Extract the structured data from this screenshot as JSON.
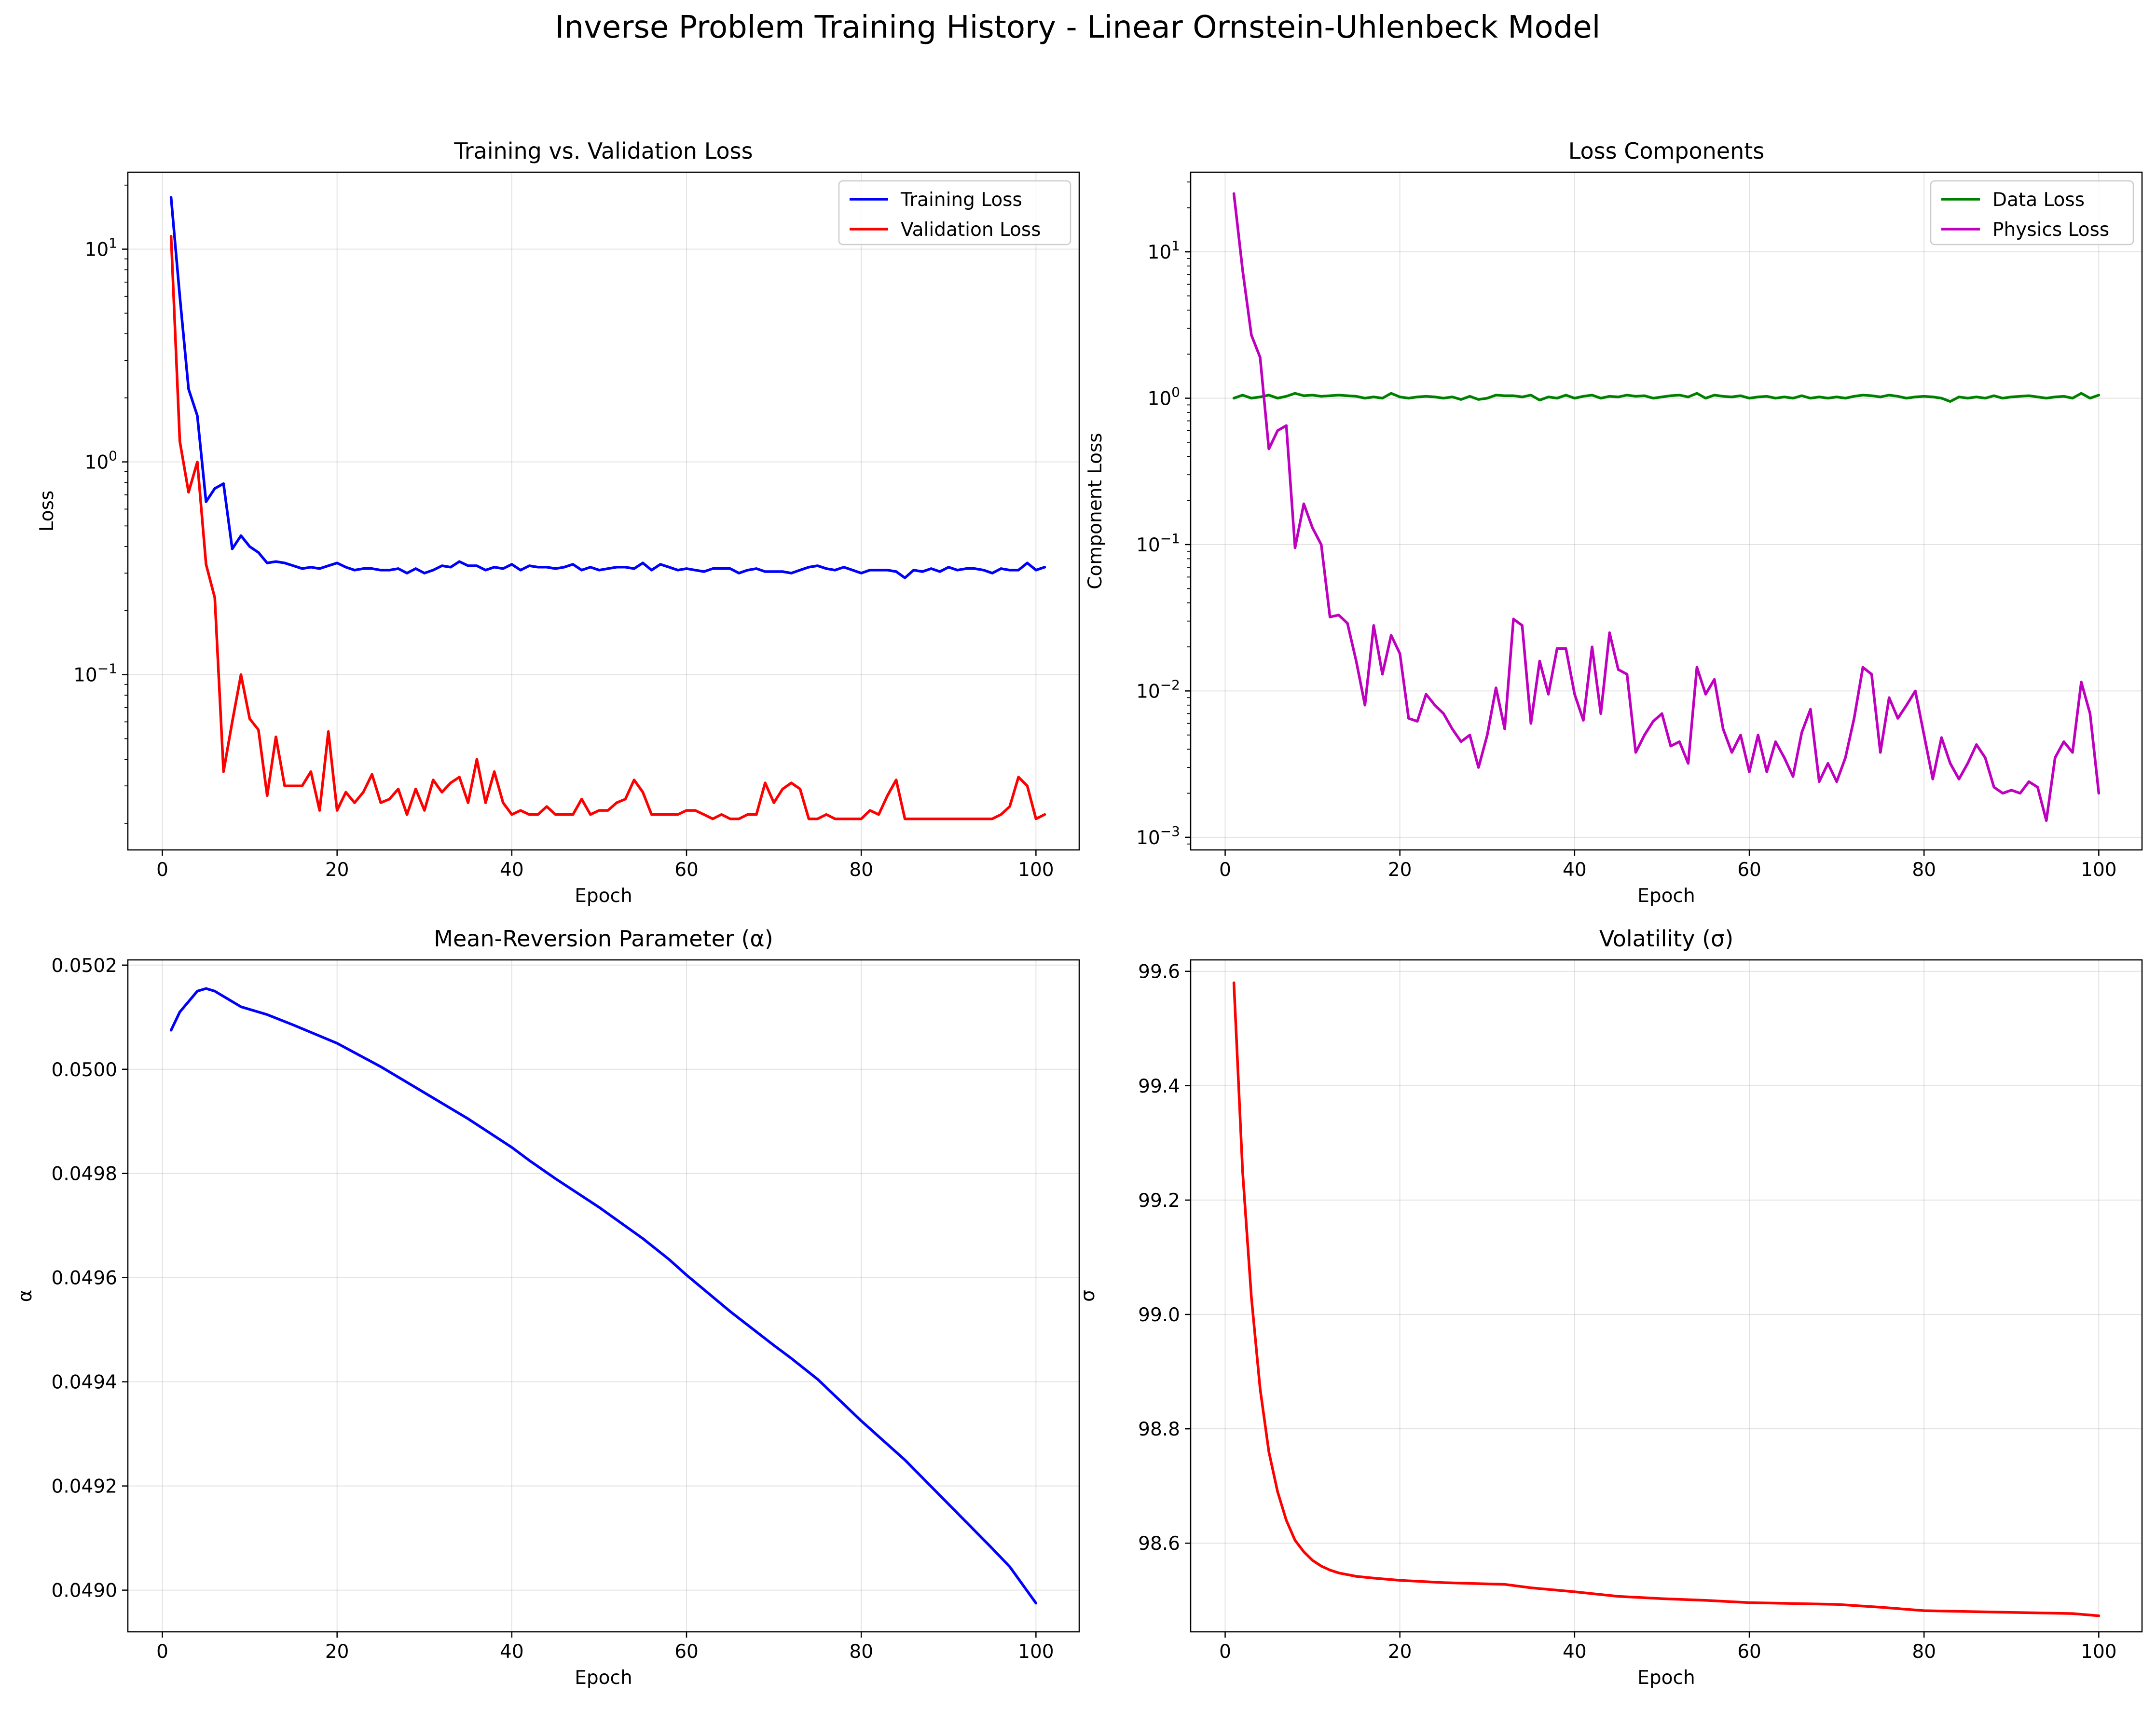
{
  "figure": {
    "suptitle": "Inverse Problem Training History - Linear Ornstein-Uhlenbeck Model"
  },
  "chart_data": [
    {
      "type": "line",
      "title": "Training vs. Validation Loss",
      "xlabel": "Epoch",
      "ylabel": "Loss",
      "yscale": "log",
      "xlim": [
        -3.95,
        104.95
      ],
      "ylim": [
        0.015,
        23
      ],
      "xticks": [
        0,
        20,
        40,
        60,
        80,
        100
      ],
      "yticks": [
        {
          "value": 0.1,
          "base": "10",
          "exp": "−1"
        },
        {
          "value": 1,
          "base": "10",
          "exp": "0"
        },
        {
          "value": 10,
          "base": "10",
          "exp": "1"
        }
      ],
      "grid": true,
      "legend_position": "top-right",
      "x_start": 1,
      "series": [
        {
          "name": "Training Loss",
          "color": "#0000ff",
          "values": [
            17.5,
            6.0,
            2.2,
            1.65,
            0.65,
            0.75,
            0.79,
            0.39,
            0.45,
            0.4,
            0.375,
            0.335,
            0.34,
            0.335,
            0.325,
            0.315,
            0.32,
            0.315,
            0.325,
            0.335,
            0.32,
            0.31,
            0.315,
            0.315,
            0.31,
            0.31,
            0.315,
            0.3,
            0.315,
            0.3,
            0.31,
            0.325,
            0.32,
            0.34,
            0.325,
            0.325,
            0.31,
            0.32,
            0.315,
            0.33,
            0.31,
            0.325,
            0.32,
            0.32,
            0.315,
            0.32,
            0.33,
            0.31,
            0.32,
            0.31,
            0.315,
            0.32,
            0.32,
            0.315,
            0.335,
            0.31,
            0.33,
            0.32,
            0.31,
            0.315,
            0.31,
            0.305,
            0.315,
            0.315,
            0.315,
            0.3,
            0.31,
            0.315,
            0.305,
            0.305,
            0.305,
            0.3,
            0.31,
            0.32,
            0.325,
            0.315,
            0.31,
            0.32,
            0.31,
            0.3,
            0.31,
            0.31,
            0.31,
            0.305,
            0.285,
            0.31,
            0.305,
            0.315,
            0.305,
            0.32,
            0.31,
            0.315,
            0.315,
            0.31,
            0.3,
            0.315,
            0.31,
            0.31,
            0.335,
            0.31,
            0.32
          ]
        },
        {
          "name": "Validation Loss",
          "color": "#ff0000",
          "values": [
            11.5,
            1.25,
            0.72,
            1.0,
            0.33,
            0.23,
            0.035,
            0.06,
            0.1,
            0.062,
            0.055,
            0.027,
            0.051,
            0.03,
            0.03,
            0.03,
            0.035,
            0.023,
            0.054,
            0.023,
            0.028,
            0.025,
            0.028,
            0.034,
            0.025,
            0.026,
            0.029,
            0.022,
            0.029,
            0.023,
            0.032,
            0.028,
            0.031,
            0.033,
            0.025,
            0.04,
            0.025,
            0.035,
            0.025,
            0.022,
            0.023,
            0.022,
            0.022,
            0.024,
            0.022,
            0.022,
            0.022,
            0.026,
            0.022,
            0.023,
            0.023,
            0.025,
            0.026,
            0.032,
            0.028,
            0.022,
            0.022,
            0.022,
            0.022,
            0.023,
            0.023,
            0.022,
            0.021,
            0.022,
            0.021,
            0.021,
            0.022,
            0.022,
            0.031,
            0.025,
            0.029,
            0.031,
            0.029,
            0.021,
            0.021,
            0.022,
            0.021,
            0.021,
            0.021,
            0.021,
            0.023,
            0.022,
            0.027,
            0.032,
            0.021,
            0.021,
            0.021,
            0.021,
            0.021,
            0.021,
            0.021,
            0.021,
            0.021,
            0.021,
            0.021,
            0.022,
            0.024,
            0.033,
            0.03,
            0.021,
            0.022
          ]
        }
      ]
    },
    {
      "type": "line",
      "title": "Loss Components",
      "xlabel": "Epoch",
      "ylabel": "Component Loss",
      "yscale": "log",
      "xlim": [
        -3.95,
        104.95
      ],
      "ylim": [
        0.00082,
        35
      ],
      "xticks": [
        0,
        20,
        40,
        60,
        80,
        100
      ],
      "yticks": [
        {
          "value": 0.001,
          "base": "10",
          "exp": "−3"
        },
        {
          "value": 0.01,
          "base": "10",
          "exp": "−2"
        },
        {
          "value": 0.1,
          "base": "10",
          "exp": "−1"
        },
        {
          "value": 1,
          "base": "10",
          "exp": "0"
        },
        {
          "value": 10,
          "base": "10",
          "exp": "1"
        }
      ],
      "grid": true,
      "legend_position": "top-right",
      "x_start": 1,
      "series": [
        {
          "name": "Data Loss",
          "color": "#008000",
          "values": [
            1.0,
            1.05,
            1.0,
            1.02,
            1.05,
            1.0,
            1.03,
            1.08,
            1.04,
            1.05,
            1.03,
            1.04,
            1.05,
            1.04,
            1.03,
            1.0,
            1.02,
            1.0,
            1.08,
            1.02,
            1.0,
            1.02,
            1.03,
            1.02,
            1.0,
            1.02,
            0.98,
            1.03,
            0.98,
            1.0,
            1.05,
            1.04,
            1.04,
            1.02,
            1.05,
            0.97,
            1.02,
            1.0,
            1.05,
            1.0,
            1.03,
            1.05,
            1.0,
            1.03,
            1.02,
            1.05,
            1.03,
            1.04,
            1.0,
            1.02,
            1.04,
            1.05,
            1.02,
            1.08,
            1.0,
            1.05,
            1.03,
            1.02,
            1.04,
            1.0,
            1.02,
            1.03,
            1.0,
            1.02,
            1.0,
            1.04,
            1.0,
            1.02,
            1.0,
            1.02,
            1.0,
            1.03,
            1.05,
            1.04,
            1.02,
            1.05,
            1.03,
            1.0,
            1.02,
            1.03,
            1.02,
            1.0,
            0.95,
            1.02,
            1.0,
            1.02,
            1.0,
            1.04,
            1.0,
            1.02,
            1.03,
            1.04,
            1.02,
            1.0,
            1.02,
            1.03,
            1.0,
            1.08,
            1.0,
            1.05
          ]
        },
        {
          "name": "Physics Loss",
          "color": "#bf00bf",
          "values": [
            25,
            7.5,
            2.7,
            1.9,
            0.45,
            0.6,
            0.65,
            0.095,
            0.19,
            0.13,
            0.1,
            0.032,
            0.033,
            0.029,
            0.016,
            0.008,
            0.028,
            0.013,
            0.024,
            0.018,
            0.0065,
            0.0062,
            0.0095,
            0.008,
            0.007,
            0.0055,
            0.0045,
            0.005,
            0.003,
            0.005,
            0.0105,
            0.0055,
            0.031,
            0.028,
            0.006,
            0.016,
            0.0095,
            0.0195,
            0.0195,
            0.0095,
            0.0063,
            0.02,
            0.007,
            0.025,
            0.014,
            0.013,
            0.0038,
            0.005,
            0.0062,
            0.007,
            0.0042,
            0.0045,
            0.0032,
            0.0145,
            0.0095,
            0.012,
            0.0055,
            0.0038,
            0.005,
            0.0028,
            0.005,
            0.0028,
            0.0045,
            0.0035,
            0.0026,
            0.0052,
            0.0075,
            0.0024,
            0.0032,
            0.0024,
            0.0035,
            0.0065,
            0.0145,
            0.013,
            0.0038,
            0.009,
            0.0065,
            0.008,
            0.01,
            0.005,
            0.0025,
            0.0048,
            0.0032,
            0.0025,
            0.0032,
            0.0043,
            0.0035,
            0.0022,
            0.002,
            0.0021,
            0.002,
            0.0024,
            0.0022,
            0.0013,
            0.0035,
            0.0045,
            0.0038,
            0.0115,
            0.007,
            0.002
          ]
        }
      ]
    },
    {
      "type": "line",
      "title": "Mean-Reversion Parameter (α)",
      "xlabel": "Epoch",
      "ylabel": "α",
      "yscale": "linear",
      "xlim": [
        -3.95,
        104.95
      ],
      "ylim": [
        0.04892,
        0.05021
      ],
      "xticks": [
        0,
        20,
        40,
        60,
        80,
        100
      ],
      "yticks": [
        {
          "value": 0.049,
          "label": "0.0490"
        },
        {
          "value": 0.0492,
          "label": "0.0492"
        },
        {
          "value": 0.0494,
          "label": "0.0494"
        },
        {
          "value": 0.0496,
          "label": "0.0496"
        },
        {
          "value": 0.0498,
          "label": "0.0498"
        },
        {
          "value": 0.05,
          "label": "0.0500"
        },
        {
          "value": 0.0502,
          "label": "0.0502"
        }
      ],
      "grid": true,
      "x": [
        1,
        2,
        3,
        4,
        5,
        6,
        7,
        8,
        9,
        10,
        12,
        15,
        20,
        25,
        30,
        35,
        40,
        42,
        45,
        50,
        55,
        58,
        60,
        65,
        70,
        72,
        75,
        80,
        85,
        90,
        95,
        97,
        100
      ],
      "series": [
        {
          "color": "#0000ff",
          "values": [
            0.050075,
            0.05011,
            0.05013,
            0.05015,
            0.050155,
            0.05015,
            0.05014,
            0.05013,
            0.05012,
            0.050115,
            0.050105,
            0.050085,
            0.05005,
            0.050005,
            0.049955,
            0.049905,
            0.04985,
            0.049825,
            0.04979,
            0.049735,
            0.049675,
            0.049635,
            0.049605,
            0.049535,
            0.04947,
            0.049445,
            0.049405,
            0.049325,
            0.04925,
            0.049165,
            0.04908,
            0.049045,
            0.048975
          ]
        }
      ]
    },
    {
      "type": "line",
      "title": "Volatility (σ)",
      "xlabel": "Epoch",
      "ylabel": "σ",
      "yscale": "linear",
      "xlim": [
        -3.95,
        104.95
      ],
      "ylim": [
        98.445,
        99.62
      ],
      "xticks": [
        0,
        20,
        40,
        60,
        80,
        100
      ],
      "yticks": [
        {
          "value": 98.6,
          "label": "98.6"
        },
        {
          "value": 98.8,
          "label": "98.8"
        },
        {
          "value": 99.0,
          "label": "99.0"
        },
        {
          "value": 99.2,
          "label": "99.2"
        },
        {
          "value": 99.4,
          "label": "99.4"
        },
        {
          "value": 99.6,
          "label": "99.6"
        }
      ],
      "grid": true,
      "x": [
        1,
        2,
        3,
        4,
        5,
        6,
        7,
        8,
        9,
        10,
        11,
        12,
        13,
        14,
        15,
        17,
        20,
        25,
        32,
        35,
        40,
        45,
        50,
        55,
        60,
        70,
        75,
        80,
        90,
        97,
        100
      ],
      "series": [
        {
          "color": "#ff0000",
          "values": [
            99.58,
            99.25,
            99.03,
            98.87,
            98.76,
            98.69,
            98.64,
            98.605,
            98.585,
            98.57,
            98.56,
            98.553,
            98.548,
            98.545,
            98.542,
            98.539,
            98.535,
            98.531,
            98.528,
            98.522,
            98.515,
            98.507,
            98.503,
            98.5,
            98.496,
            98.493,
            98.488,
            98.482,
            98.479,
            98.477,
            98.473
          ]
        }
      ]
    }
  ]
}
